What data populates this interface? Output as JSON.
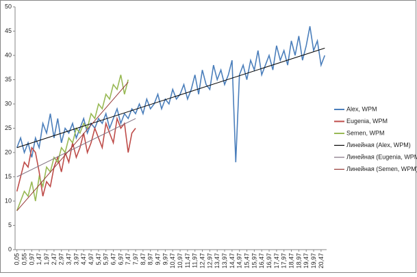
{
  "chart_data": {
    "type": "line",
    "categories": [
      "0,05",
      null,
      "0,55",
      null,
      "0,97",
      null,
      "1,47",
      null,
      "1,97",
      null,
      "2,47",
      null,
      "2,97",
      null,
      "3,47",
      null,
      "3,97",
      null,
      "4,47",
      null,
      "4,97",
      null,
      "5,47",
      null,
      "5,97",
      null,
      "6,47",
      null,
      "6,97",
      null,
      "7,47",
      null,
      "7,97",
      null,
      "8,47",
      null,
      "8,97",
      null,
      "9,47",
      null,
      "9,97",
      null,
      "10,47",
      null,
      "10,97",
      null,
      "11,47",
      null,
      "11,97",
      null,
      "12,47",
      null,
      "12,97",
      null,
      "13,47",
      null,
      "13,97",
      null,
      "14,47",
      null,
      "14,97",
      null,
      "15,47",
      null,
      "15,97",
      null,
      "16,47",
      null,
      "16,97",
      null,
      "17,47",
      null,
      "17,97",
      null,
      "18,47",
      null,
      "18,97",
      null,
      "19,47",
      null,
      "19,97",
      null,
      "20,47",
      null
    ],
    "series": [
      {
        "name": "Alex, WPM",
        "color": "#4a7ebb",
        "values": [
          21,
          23,
          20,
          22,
          19,
          23,
          21,
          26,
          24,
          28,
          23,
          27,
          22,
          25,
          24,
          26,
          23,
          25,
          27,
          24,
          26,
          25,
          27,
          26,
          28,
          25,
          27,
          29,
          26,
          28,
          27,
          29,
          28,
          30,
          28,
          31,
          29,
          30,
          32,
          29,
          31,
          30,
          33,
          31,
          32,
          34,
          31,
          33,
          36,
          32,
          37,
          34,
          33,
          38,
          35,
          37,
          34,
          36,
          39,
          18,
          36,
          38,
          35,
          39,
          37,
          41,
          36,
          38,
          40,
          37,
          42,
          39,
          41,
          38,
          43,
          40,
          44,
          39,
          42,
          46,
          41,
          43,
          38,
          40
        ]
      },
      {
        "name": "Eugenia, WPM",
        "color": "#be4b48",
        "values": [
          12,
          15,
          18,
          17,
          21,
          20,
          16,
          11,
          14,
          13,
          17,
          19,
          16,
          20,
          18,
          22,
          19,
          21,
          24,
          20,
          22,
          25,
          23,
          21,
          26,
          24,
          22,
          27,
          25,
          26,
          20,
          24,
          25,
          null,
          null,
          null,
          null,
          null,
          null,
          null,
          null,
          null,
          null,
          null,
          null,
          null,
          null,
          null,
          null,
          null,
          null,
          null,
          null,
          null,
          null,
          null,
          null,
          null,
          null,
          null,
          null,
          null,
          null,
          null,
          null,
          null,
          null,
          null,
          null,
          null,
          null,
          null,
          null,
          null,
          null,
          null,
          null,
          null,
          null,
          null,
          null,
          null,
          null,
          null
        ]
      },
      {
        "name": "Semen, WPM",
        "color": "#98b954",
        "values": [
          8,
          10,
          12,
          11,
          14,
          10,
          15,
          13,
          17,
          16,
          19,
          18,
          21,
          20,
          23,
          22,
          25,
          24,
          26,
          25,
          28,
          27,
          30,
          29,
          32,
          31,
          34,
          33,
          36,
          32,
          35,
          null,
          null,
          null,
          null,
          null,
          null,
          null,
          null,
          null,
          null,
          null,
          null,
          null,
          null,
          null,
          null,
          null,
          null,
          null,
          null,
          null,
          null,
          null,
          null,
          null,
          null,
          null,
          null,
          null,
          null,
          null,
          null,
          null,
          null,
          null,
          null,
          null,
          null,
          null,
          null,
          null,
          null,
          null,
          null,
          null,
          null,
          null,
          null,
          null,
          null,
          null,
          null,
          null
        ]
      }
    ],
    "trendlines": [
      {
        "name": "Линейная (Alex, WPM)",
        "color": "#000000",
        "series": 0,
        "start": 21,
        "end": 41.5
      },
      {
        "name": "Линейная (Eugenia, WPM)",
        "color": "#7f6f7f",
        "series": 1,
        "start": 15,
        "end": 27
      },
      {
        "name": "Линейная (Semen, WPM)",
        "color": "#953735",
        "series": 2,
        "start": 8,
        "end": 34.5
      }
    ],
    "ylim": [
      0,
      50
    ],
    "yticks": [
      0,
      5,
      10,
      15,
      20,
      25,
      30,
      35,
      40,
      45,
      50
    ],
    "grid": false,
    "legend": "right"
  }
}
